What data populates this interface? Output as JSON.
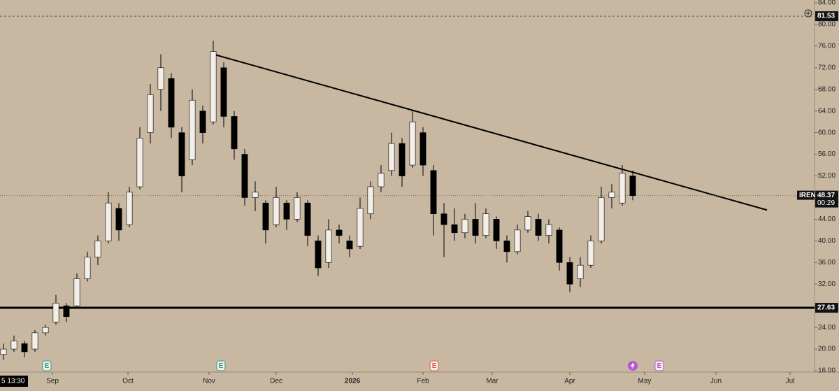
{
  "chart_data": {
    "type": "candlestick",
    "symbol": "IREN",
    "countdown": "00:29",
    "crosshair_label": "5  13:30",
    "categories": [
      null,
      null,
      null,
      null,
      null,
      null,
      null,
      null,
      null,
      null,
      null,
      null,
      null,
      null,
      null,
      null,
      null,
      null,
      null,
      null,
      null,
      null,
      null,
      null,
      null,
      null,
      null,
      null,
      null,
      null,
      null,
      null,
      null,
      null,
      null,
      null,
      null,
      null,
      null,
      null,
      null,
      null,
      null,
      null,
      null,
      null,
      null,
      null,
      null,
      null,
      null,
      null,
      null,
      null,
      null,
      null,
      null,
      null,
      null,
      null,
      null
    ],
    "open": [
      19,
      20,
      21,
      20,
      23,
      25,
      28,
      28,
      33,
      37,
      40,
      46,
      43,
      50,
      60,
      68,
      70,
      60,
      55,
      64,
      62,
      72,
      63,
      56,
      48,
      47,
      43,
      47,
      44,
      47,
      40,
      36,
      42,
      40,
      39,
      45,
      50,
      53,
      58,
      54,
      60,
      53,
      45,
      43,
      41.5,
      44,
      41,
      44,
      40,
      38,
      42,
      44,
      41,
      42,
      36,
      33,
      35.5,
      40,
      48,
      47,
      52
    ],
    "high": [
      21,
      22.5,
      21.5,
      23.5,
      24.5,
      30,
      28.5,
      34,
      38,
      41,
      49,
      47,
      50,
      61,
      69,
      74.5,
      71,
      61,
      68,
      65,
      77,
      73,
      64,
      57,
      51,
      47.5,
      50,
      47.5,
      49,
      47.5,
      41,
      44,
      43,
      41,
      48,
      51,
      54,
      60,
      59,
      64,
      61,
      54,
      47,
      46,
      45,
      47,
      46,
      44.5,
      41,
      43,
      45.5,
      45,
      44,
      42.5,
      37,
      37,
      41,
      50,
      50.5,
      54,
      53
    ],
    "low": [
      18,
      19.5,
      18.5,
      19.5,
      22.5,
      24.5,
      25,
      27.5,
      32.5,
      35.5,
      39.5,
      40,
      42.5,
      49.5,
      58,
      64,
      59,
      49,
      54,
      58,
      61.5,
      61,
      55,
      46.5,
      45.5,
      39.5,
      42.5,
      42,
      43.5,
      39,
      33.5,
      35,
      39.5,
      37,
      38.5,
      44,
      49,
      52,
      50,
      53.5,
      52,
      41,
      37,
      40,
      40.5,
      39.5,
      40.5,
      38.5,
      36,
      37.5,
      41.5,
      40,
      39.5,
      34.5,
      30.5,
      31.5,
      35,
      39.5,
      46,
      46.5,
      47.5
    ],
    "close": [
      20,
      21.5,
      19.5,
      23,
      24,
      28.5,
      26,
      33,
      37,
      40,
      47,
      42,
      49,
      59,
      67,
      72,
      61,
      52,
      66,
      60,
      75,
      63,
      57,
      48,
      49,
      42,
      48,
      44,
      48,
      41,
      35,
      42,
      41,
      38.5,
      46,
      50,
      52.5,
      58,
      52,
      62,
      54,
      45,
      43,
      41.5,
      44,
      41,
      45,
      40,
      38,
      42,
      44.5,
      41,
      43,
      36,
      32,
      35.5,
      40,
      48,
      49,
      52.5,
      48.37
    ],
    "up_color": "#f3efe8",
    "down_color": "#000000",
    "background": "#c8b8a2",
    "xlim": [
      -0.333,
      77.333
    ],
    "ylim": [
      16,
      84
    ],
    "xticks": [
      {
        "value": 4.67,
        "label": "Sep"
      },
      {
        "value": 11.87,
        "label": "Oct"
      },
      {
        "value": 19.6,
        "label": "Nov"
      },
      {
        "value": 26,
        "label": "Dec"
      },
      {
        "value": 33.27,
        "label": "2026"
      },
      {
        "value": 40,
        "label": "Feb"
      },
      {
        "value": 46.6,
        "label": "Mar"
      },
      {
        "value": 54,
        "label": "Apr"
      },
      {
        "value": 61.13,
        "label": "May"
      },
      {
        "value": 67.93,
        "label": "Jun"
      },
      {
        "value": 75,
        "label": "Jul"
      }
    ],
    "yticks": [
      {
        "value": 16,
        "label": "16.00"
      },
      {
        "value": 20,
        "label": "20.00"
      },
      {
        "value": 24,
        "label": "24.00"
      },
      {
        "value": 28,
        "label": "28.00"
      },
      {
        "value": 32,
        "label": "32.00"
      },
      {
        "value": 36,
        "label": "36.00"
      },
      {
        "value": 40,
        "label": "40.00"
      },
      {
        "value": 44,
        "label": "44.00"
      },
      {
        "value": 48,
        "label": "48.00"
      },
      {
        "value": 52,
        "label": "52.00"
      },
      {
        "value": 56,
        "label": "56.00"
      },
      {
        "value": 60,
        "label": "60.00"
      },
      {
        "value": 64,
        "label": "64.00"
      },
      {
        "value": 68,
        "label": "68.00"
      },
      {
        "value": 72,
        "label": "72.00"
      },
      {
        "value": 76,
        "label": "76.00"
      },
      {
        "value": 80,
        "label": "80.00"
      },
      {
        "value": 84,
        "label": "84.00"
      }
    ],
    "hlines": [
      {
        "value": 27.63,
        "style": "solid"
      },
      {
        "value": 81.53,
        "style": "dashed"
      }
    ],
    "trendline": {
      "x": [
        20,
        72.8
      ],
      "y": [
        74.5,
        45.7
      ]
    },
    "events": [
      {
        "x": 4.13,
        "label": "E",
        "color": "#2a9d8f"
      },
      {
        "x": 20.73,
        "label": "E",
        "color": "#2a9d8f"
      },
      {
        "x": 41.07,
        "label": "E",
        "color": "#e05a4f"
      },
      {
        "x": 62.53,
        "label": "E",
        "color": "#b455d6"
      }
    ]
  }
}
